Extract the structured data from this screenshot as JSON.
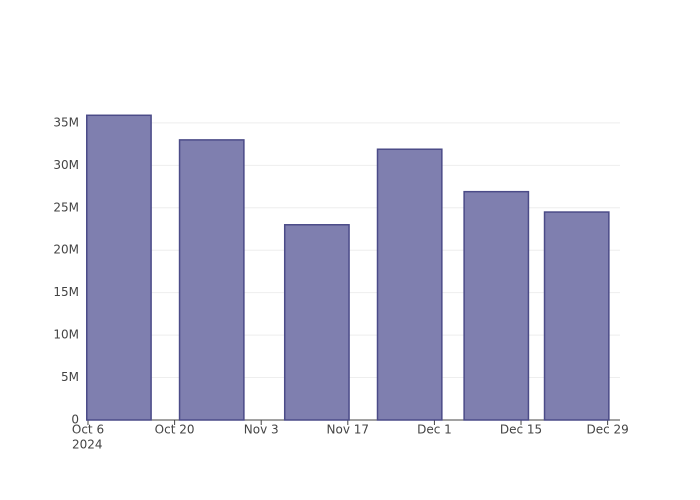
{
  "chart_data": {
    "type": "bar",
    "x": [
      "2024-10-11",
      "2024-10-26",
      "2024-11-12",
      "2024-11-27",
      "2024-12-11",
      "2024-12-24"
    ],
    "values": [
      35900000,
      33000000,
      23000000,
      31900000,
      26900000,
      24500000
    ],
    "color": "#7f7faf",
    "edge_color": "#4b4b88",
    "xlim": [
      "2024-10-06",
      "2024-12-31"
    ],
    "xticks": [
      {
        "value": "2024-10-06",
        "label": "Oct 6",
        "year": "2024"
      },
      {
        "value": "2024-10-20",
        "label": "Oct 20"
      },
      {
        "value": "2024-11-03",
        "label": "Nov 3"
      },
      {
        "value": "2024-11-17",
        "label": "Nov 17"
      },
      {
        "value": "2024-12-01",
        "label": "Dec 1"
      },
      {
        "value": "2024-12-15",
        "label": "Dec 15"
      },
      {
        "value": "2024-12-29",
        "label": "Dec 29"
      }
    ],
    "ylim": [
      0,
      37700000
    ],
    "yticks": [
      0,
      {
        "value": 5000000,
        "label": "5M"
      },
      {
        "value": 10000000,
        "label": "10M"
      },
      {
        "value": 15000000,
        "label": "15M"
      },
      {
        "value": 20000000,
        "label": "20M"
      },
      {
        "value": 25000000,
        "label": "25M"
      },
      {
        "value": 30000000,
        "label": "30M"
      },
      {
        "value": 35000000,
        "label": "35M"
      }
    ],
    "grid": true
  }
}
